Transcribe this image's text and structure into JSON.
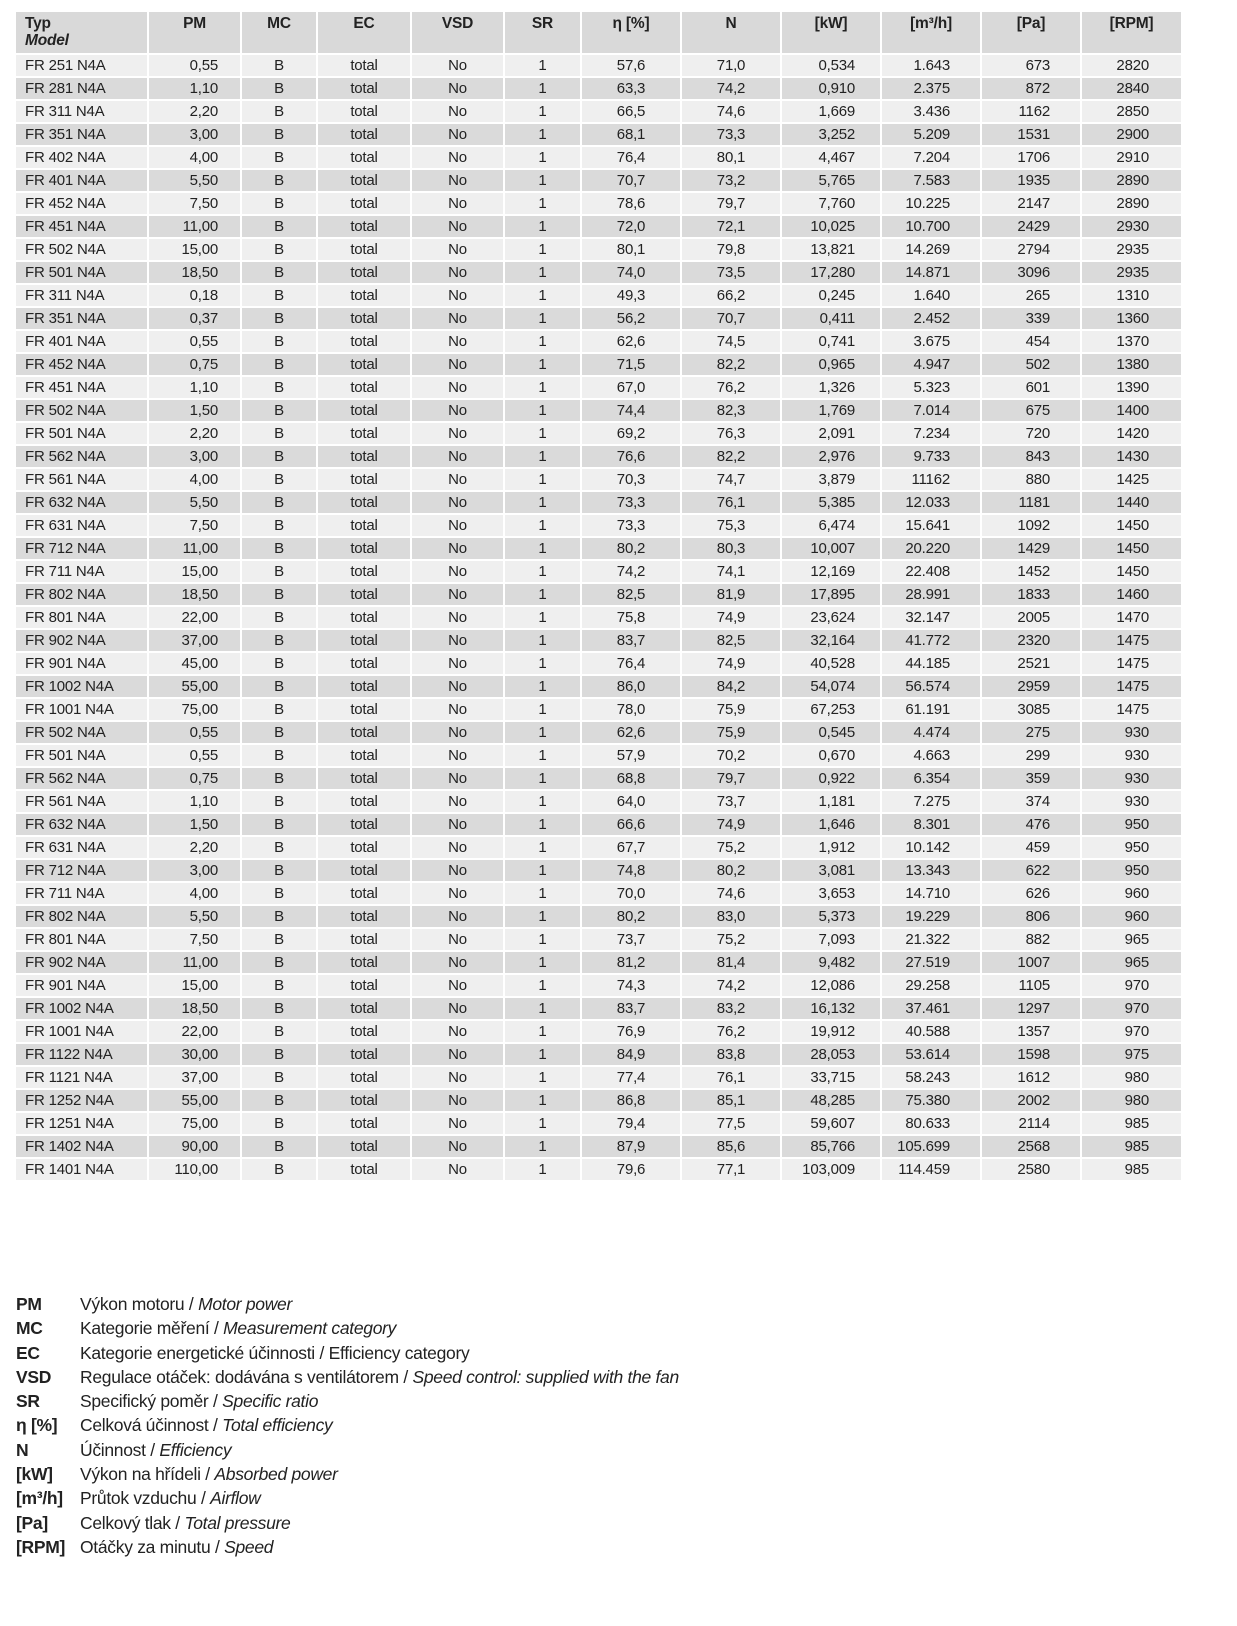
{
  "table": {
    "headers": [
      [
        "Typ",
        "Model"
      ],
      [
        "PM"
      ],
      [
        "MC"
      ],
      [
        "EC"
      ],
      [
        "VSD"
      ],
      [
        "SR"
      ],
      [
        "η [%]"
      ],
      [
        "N"
      ],
      [
        "[kW]"
      ],
      [
        "[m³/h]"
      ],
      [
        "[Pa]"
      ],
      [
        "[RPM]"
      ]
    ],
    "rows": [
      [
        "FR 251 N4A",
        "0,55",
        "B",
        "total",
        "No",
        "1",
        "57,6",
        "71,0",
        "0,534",
        "1.643",
        "673",
        "2820"
      ],
      [
        "FR 281 N4A",
        "1,10",
        "B",
        "total",
        "No",
        "1",
        "63,3",
        "74,2",
        "0,910",
        "2.375",
        "872",
        "2840"
      ],
      [
        "FR 311 N4A",
        "2,20",
        "B",
        "total",
        "No",
        "1",
        "66,5",
        "74,6",
        "1,669",
        "3.436",
        "1162",
        "2850"
      ],
      [
        "FR 351 N4A",
        "3,00",
        "B",
        "total",
        "No",
        "1",
        "68,1",
        "73,3",
        "3,252",
        "5.209",
        "1531",
        "2900"
      ],
      [
        "FR 402 N4A",
        "4,00",
        "B",
        "total",
        "No",
        "1",
        "76,4",
        "80,1",
        "4,467",
        "7.204",
        "1706",
        "2910"
      ],
      [
        "FR 401 N4A",
        "5,50",
        "B",
        "total",
        "No",
        "1",
        "70,7",
        "73,2",
        "5,765",
        "7.583",
        "1935",
        "2890"
      ],
      [
        "FR 452 N4A",
        "7,50",
        "B",
        "total",
        "No",
        "1",
        "78,6",
        "79,7",
        "7,760",
        "10.225",
        "2147",
        "2890"
      ],
      [
        "FR 451 N4A",
        "11,00",
        "B",
        "total",
        "No",
        "1",
        "72,0",
        "72,1",
        "10,025",
        "10.700",
        "2429",
        "2930"
      ],
      [
        "FR 502 N4A",
        "15,00",
        "B",
        "total",
        "No",
        "1",
        "80,1",
        "79,8",
        "13,821",
        "14.269",
        "2794",
        "2935"
      ],
      [
        "FR 501 N4A",
        "18,50",
        "B",
        "total",
        "No",
        "1",
        "74,0",
        "73,5",
        "17,280",
        "14.871",
        "3096",
        "2935"
      ],
      [
        "FR 311 N4A",
        "0,18",
        "B",
        "total",
        "No",
        "1",
        "49,3",
        "66,2",
        "0,245",
        "1.640",
        "265",
        "1310"
      ],
      [
        "FR 351 N4A",
        "0,37",
        "B",
        "total",
        "No",
        "1",
        "56,2",
        "70,7",
        "0,411",
        "2.452",
        "339",
        "1360"
      ],
      [
        "FR 401 N4A",
        "0,55",
        "B",
        "total",
        "No",
        "1",
        "62,6",
        "74,5",
        "0,741",
        "3.675",
        "454",
        "1370"
      ],
      [
        "FR 452 N4A",
        "0,75",
        "B",
        "total",
        "No",
        "1",
        "71,5",
        "82,2",
        "0,965",
        "4.947",
        "502",
        "1380"
      ],
      [
        "FR 451 N4A",
        "1,10",
        "B",
        "total",
        "No",
        "1",
        "67,0",
        "76,2",
        "1,326",
        "5.323",
        "601",
        "1390"
      ],
      [
        "FR 502 N4A",
        "1,50",
        "B",
        "total",
        "No",
        "1",
        "74,4",
        "82,3",
        "1,769",
        "7.014",
        "675",
        "1400"
      ],
      [
        "FR 501 N4A",
        "2,20",
        "B",
        "total",
        "No",
        "1",
        "69,2",
        "76,3",
        "2,091",
        "7.234",
        "720",
        "1420"
      ],
      [
        "FR 562 N4A",
        "3,00",
        "B",
        "total",
        "No",
        "1",
        "76,6",
        "82,2",
        "2,976",
        "9.733",
        "843",
        "1430"
      ],
      [
        "FR 561 N4A",
        "4,00",
        "B",
        "total",
        "No",
        "1",
        "70,3",
        "74,7",
        "3,879",
        "11162",
        "880",
        "1425"
      ],
      [
        "FR 632 N4A",
        "5,50",
        "B",
        "total",
        "No",
        "1",
        "73,3",
        "76,1",
        "5,385",
        "12.033",
        "1181",
        "1440"
      ],
      [
        "FR 631 N4A",
        "7,50",
        "B",
        "total",
        "No",
        "1",
        "73,3",
        "75,3",
        "6,474",
        "15.641",
        "1092",
        "1450"
      ],
      [
        "FR 712 N4A",
        "11,00",
        "B",
        "total",
        "No",
        "1",
        "80,2",
        "80,3",
        "10,007",
        "20.220",
        "1429",
        "1450"
      ],
      [
        "FR 711 N4A",
        "15,00",
        "B",
        "total",
        "No",
        "1",
        "74,2",
        "74,1",
        "12,169",
        "22.408",
        "1452",
        "1450"
      ],
      [
        "FR 802 N4A",
        "18,50",
        "B",
        "total",
        "No",
        "1",
        "82,5",
        "81,9",
        "17,895",
        "28.991",
        "1833",
        "1460"
      ],
      [
        "FR 801 N4A",
        "22,00",
        "B",
        "total",
        "No",
        "1",
        "75,8",
        "74,9",
        "23,624",
        "32.147",
        "2005",
        "1470"
      ],
      [
        "FR 902 N4A",
        "37,00",
        "B",
        "total",
        "No",
        "1",
        "83,7",
        "82,5",
        "32,164",
        "41.772",
        "2320",
        "1475"
      ],
      [
        "FR 901 N4A",
        "45,00",
        "B",
        "total",
        "No",
        "1",
        "76,4",
        "74,9",
        "40,528",
        "44.185",
        "2521",
        "1475"
      ],
      [
        "FR 1002 N4A",
        "55,00",
        "B",
        "total",
        "No",
        "1",
        "86,0",
        "84,2",
        "54,074",
        "56.574",
        "2959",
        "1475"
      ],
      [
        "FR 1001 N4A",
        "75,00",
        "B",
        "total",
        "No",
        "1",
        "78,0",
        "75,9",
        "67,253",
        "61.191",
        "3085",
        "1475"
      ],
      [
        "FR 502 N4A",
        "0,55",
        "B",
        "total",
        "No",
        "1",
        "62,6",
        "75,9",
        "0,545",
        "4.474",
        "275",
        "930"
      ],
      [
        "FR 501 N4A",
        "0,55",
        "B",
        "total",
        "No",
        "1",
        "57,9",
        "70,2",
        "0,670",
        "4.663",
        "299",
        "930"
      ],
      [
        "FR 562 N4A",
        "0,75",
        "B",
        "total",
        "No",
        "1",
        "68,8",
        "79,7",
        "0,922",
        "6.354",
        "359",
        "930"
      ],
      [
        "FR 561 N4A",
        "1,10",
        "B",
        "total",
        "No",
        "1",
        "64,0",
        "73,7",
        "1,181",
        "7.275",
        "374",
        "930"
      ],
      [
        "FR 632 N4A",
        "1,50",
        "B",
        "total",
        "No",
        "1",
        "66,6",
        "74,9",
        "1,646",
        "8.301",
        "476",
        "950"
      ],
      [
        "FR 631 N4A",
        "2,20",
        "B",
        "total",
        "No",
        "1",
        "67,7",
        "75,2",
        "1,912",
        "10.142",
        "459",
        "950"
      ],
      [
        "FR 712 N4A",
        "3,00",
        "B",
        "total",
        "No",
        "1",
        "74,8",
        "80,2",
        "3,081",
        "13.343",
        "622",
        "950"
      ],
      [
        "FR 711 N4A",
        "4,00",
        "B",
        "total",
        "No",
        "1",
        "70,0",
        "74,6",
        "3,653",
        "14.710",
        "626",
        "960"
      ],
      [
        "FR 802 N4A",
        "5,50",
        "B",
        "total",
        "No",
        "1",
        "80,2",
        "83,0",
        "5,373",
        "19.229",
        "806",
        "960"
      ],
      [
        "FR 801 N4A",
        "7,50",
        "B",
        "total",
        "No",
        "1",
        "73,7",
        "75,2",
        "7,093",
        "21.322",
        "882",
        "965"
      ],
      [
        "FR 902 N4A",
        "11,00",
        "B",
        "total",
        "No",
        "1",
        "81,2",
        "81,4",
        "9,482",
        "27.519",
        "1007",
        "965"
      ],
      [
        "FR 901 N4A",
        "15,00",
        "B",
        "total",
        "No",
        "1",
        "74,3",
        "74,2",
        "12,086",
        "29.258",
        "1105",
        "970"
      ],
      [
        "FR 1002 N4A",
        "18,50",
        "B",
        "total",
        "No",
        "1",
        "83,7",
        "83,2",
        "16,132",
        "37.461",
        "1297",
        "970"
      ],
      [
        "FR 1001 N4A",
        "22,00",
        "B",
        "total",
        "No",
        "1",
        "76,9",
        "76,2",
        "19,912",
        "40.588",
        "1357",
        "970"
      ],
      [
        "FR 1122 N4A",
        "30,00",
        "B",
        "total",
        "No",
        "1",
        "84,9",
        "83,8",
        "28,053",
        "53.614",
        "1598",
        "975"
      ],
      [
        "FR 1121 N4A",
        "37,00",
        "B",
        "total",
        "No",
        "1",
        "77,4",
        "76,1",
        "33,715",
        "58.243",
        "1612",
        "980"
      ],
      [
        "FR 1252 N4A",
        "55,00",
        "B",
        "total",
        "No",
        "1",
        "86,8",
        "85,1",
        "48,285",
        "75.380",
        "2002",
        "980"
      ],
      [
        "FR 1251 N4A",
        "75,00",
        "B",
        "total",
        "No",
        "1",
        "79,4",
        "77,5",
        "59,607",
        "80.633",
        "2114",
        "985"
      ],
      [
        "FR 1402 N4A",
        "90,00",
        "B",
        "total",
        "No",
        "1",
        "87,9",
        "85,6",
        "85,766",
        "105.699",
        "2568",
        "985"
      ],
      [
        "FR 1401 N4A",
        "110,00",
        "B",
        "total",
        "No",
        "1",
        "79,6",
        "77,1",
        "103,009",
        "114.459",
        "2580",
        "985"
      ]
    ]
  },
  "legend": [
    {
      "key": "PM",
      "cz": "Výkon motoru / ",
      "en": "Motor power",
      "en_italic": true
    },
    {
      "key": "MC",
      "cz": "Kategorie měření / ",
      "en": "Measurement category",
      "en_italic": true
    },
    {
      "key": "EC",
      "cz": "Kategorie energetické účinnosti / ",
      "en": "Efficiency category",
      "en_italic": false
    },
    {
      "key": "VSD",
      "cz": "Regulace otáček: dodávána s ventilátorem / ",
      "en": "Speed control: supplied with the fan",
      "en_italic": true
    },
    {
      "key": "SR",
      "cz": "Specifický poměr / ",
      "en": "Specific ratio",
      "en_italic": true
    },
    {
      "key": "η [%]",
      "cz": "Celková účinnost / ",
      "en": "Total efficiency",
      "en_italic": true
    },
    {
      "key": "N",
      "cz": "Účinnost / ",
      "en": "Efficiency",
      "en_italic": true
    },
    {
      "key": "[kW]",
      "cz": "Výkon na hřídeli / ",
      "en": "Absorbed power",
      "en_italic": true
    },
    {
      "key": "[m³/h]",
      "cz": "Průtok vzduchu / ",
      "en": "Airflow",
      "en_italic": true
    },
    {
      "key": "[Pa]",
      "cz": "Celkový tlak / ",
      "en": "Total pressure",
      "en_italic": true
    },
    {
      "key": "[RPM]",
      "cz": "Otáčky za minutu / ",
      "en": "Speed",
      "en_italic": true
    }
  ]
}
